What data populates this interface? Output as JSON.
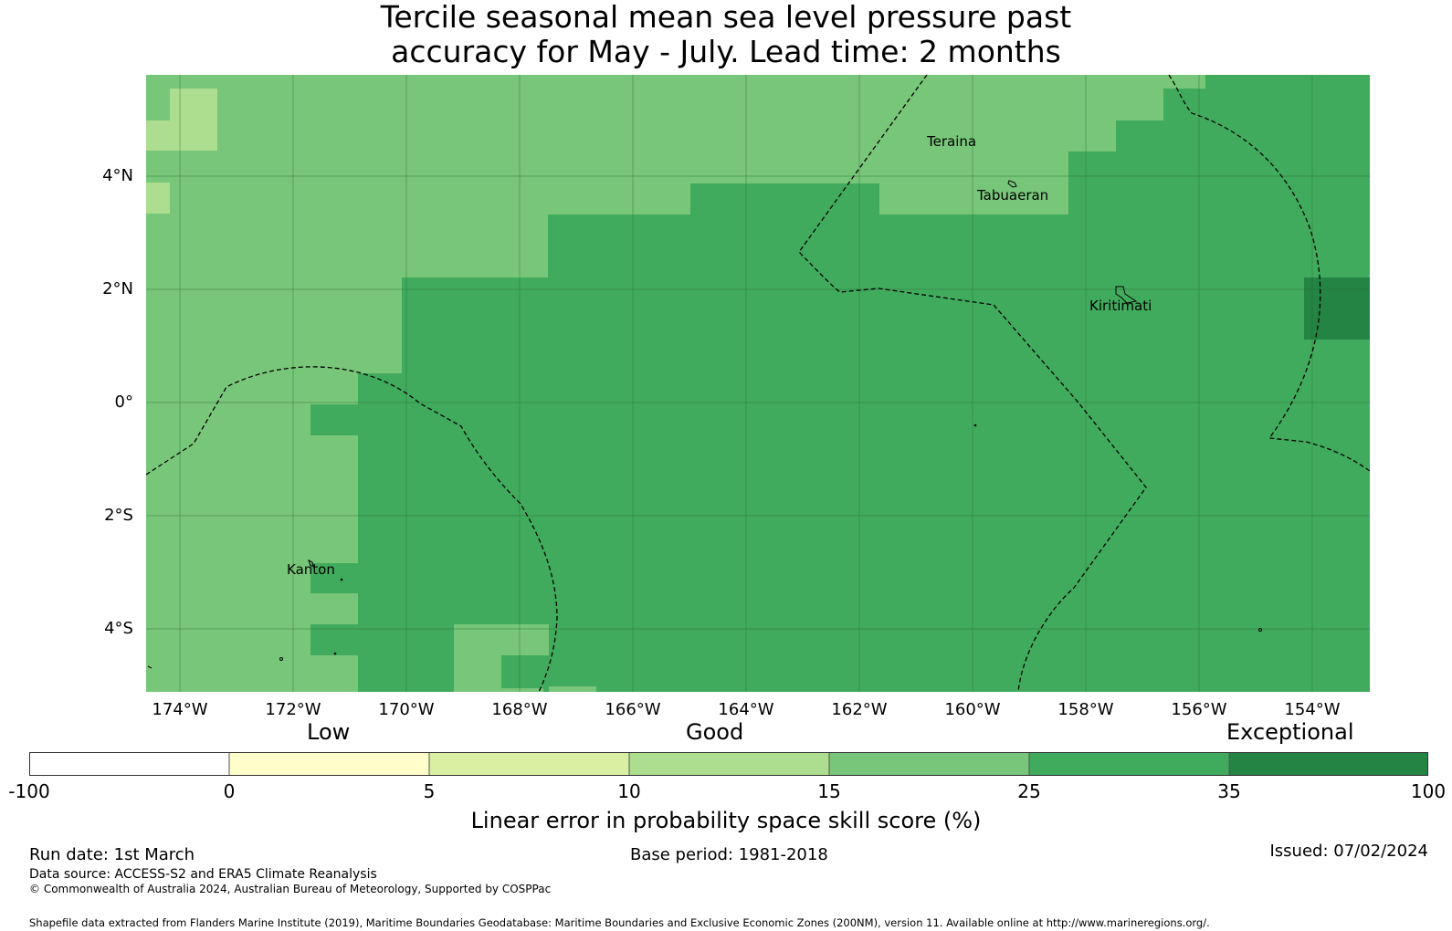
{
  "title_line1": "Tercile seasonal mean sea level pressure past",
  "title_line2": "accuracy for May - July. Lead time: 2 months",
  "colors": {
    "c15": "#78c679",
    "c10": "#addd8e",
    "c25": "#41ab5d",
    "c35": "#238443",
    "c5": "#d9f0a3",
    "c0": "#ffffcc",
    "cneg": "#ffffff"
  },
  "lat_labels": [
    "4°N",
    "2°N",
    "0°",
    "2°S",
    "4°S"
  ],
  "lon_labels": [
    "174°W",
    "172°W",
    "170°W",
    "168°W",
    "166°W",
    "164°W",
    "162°W",
    "160°W",
    "158°W",
    "156°W",
    "154°W"
  ],
  "places": [
    "Teraina",
    "Tabuaeran",
    "Kiritimati",
    "Kanton"
  ],
  "legend": {
    "levels": [
      "Low",
      "Good",
      "Exceptional"
    ],
    "ticks": [
      "-100",
      "0",
      "5",
      "10",
      "15",
      "25",
      "35",
      "100"
    ],
    "label": "Linear error in probability space skill score (%)"
  },
  "footer": {
    "run_date": "Run date: 1st March",
    "base_period": "Base period: 1981-2018",
    "issued": "Issued: 07/02/2024",
    "data_source": "Data source: ACCESS-S2 and ERA5 Climate Reanalysis",
    "copyright": "© Commonwealth of Australia 2024, Australian Bureau of Meteorology, Supported by COSPPac",
    "shapefile": "Shapefile data extracted from Flanders Marine Institute (2019), Maritime Boundaries Geodatabase: Maritime Boundaries and Exclusive Economic Zones (200NM), version 11. Available online at http://www.marineregions.org/."
  }
}
